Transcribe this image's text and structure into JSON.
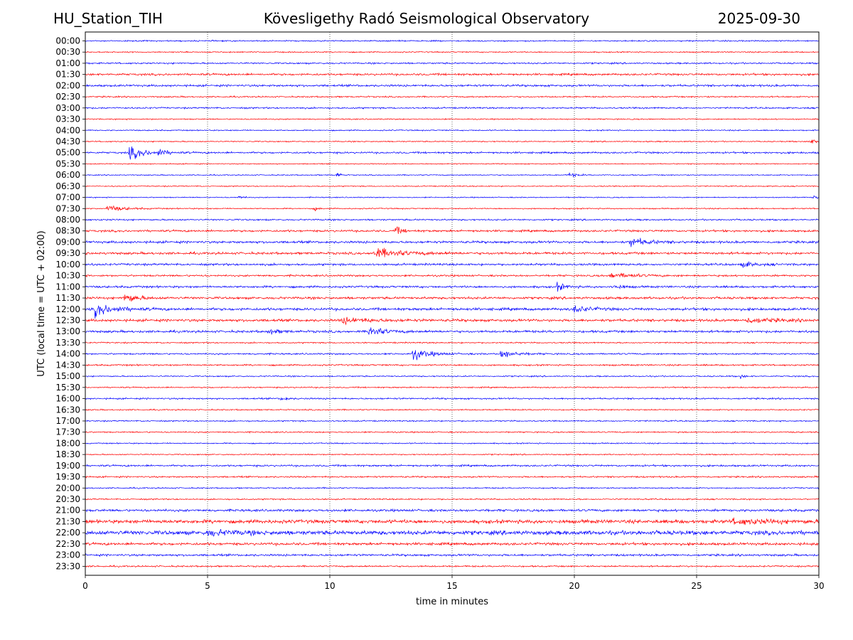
{
  "header": {
    "station": "HU_Station_TIH",
    "title": "Kövesligethy Radó Seismological Observatory",
    "date": "2025-09-30"
  },
  "chart_data": {
    "type": "line",
    "title": "Kövesligethy Radó Seismological Observatory",
    "xlabel": "time in minutes",
    "ylabel": "UTC (local time = UTC + 02:00)",
    "xlim": [
      0,
      30
    ],
    "xticks": [
      0,
      5,
      10,
      15,
      20,
      25,
      30
    ],
    "grid": "vertical dotted at x ticks",
    "colors": {
      "even": "#0000ff",
      "odd": "#ff0000",
      "frame": "#000000",
      "grid": "#000000"
    },
    "traces": [
      {
        "label": "00:00",
        "base": 0.5,
        "events": []
      },
      {
        "label": "00:30",
        "base": 0.45,
        "events": []
      },
      {
        "label": "01:00",
        "base": 0.6,
        "events": []
      },
      {
        "label": "01:30",
        "base": 0.8,
        "events": []
      },
      {
        "label": "02:00",
        "base": 0.8,
        "events": []
      },
      {
        "label": "02:30",
        "base": 0.55,
        "events": []
      },
      {
        "label": "03:00",
        "base": 0.6,
        "events": []
      },
      {
        "label": "03:30",
        "base": 0.45,
        "events": []
      },
      {
        "label": "04:00",
        "base": 0.45,
        "events": []
      },
      {
        "label": "04:30",
        "base": 0.45,
        "events": [
          {
            "t": 29.6,
            "amp": 2.5,
            "dur": 0.5
          }
        ]
      },
      {
        "label": "05:00",
        "base": 0.7,
        "events": [
          {
            "t": 1.8,
            "amp": 5,
            "dur": 1.2
          },
          {
            "t": 3.0,
            "amp": 2.5,
            "dur": 0.5
          }
        ]
      },
      {
        "label": "05:30",
        "base": 0.4,
        "events": []
      },
      {
        "label": "06:00",
        "base": 0.4,
        "events": [
          {
            "t": 10.3,
            "amp": 3,
            "dur": 0.2
          },
          {
            "t": 19.8,
            "amp": 1.8,
            "dur": 0.6
          }
        ]
      },
      {
        "label": "06:30",
        "base": 0.4,
        "events": []
      },
      {
        "label": "07:00",
        "base": 0.4,
        "events": [
          {
            "t": 6.3,
            "amp": 1.5,
            "dur": 0.3
          },
          {
            "t": 29.8,
            "amp": 2.5,
            "dur": 0.3
          }
        ]
      },
      {
        "label": "07:30",
        "base": 0.45,
        "events": [
          {
            "t": 0.9,
            "amp": 2.5,
            "dur": 1.2
          },
          {
            "t": 9.4,
            "amp": 2,
            "dur": 0.2
          }
        ]
      },
      {
        "label": "08:00",
        "base": 0.6,
        "events": []
      },
      {
        "label": "08:30",
        "base": 0.8,
        "events": [
          {
            "t": 12.7,
            "amp": 3,
            "dur": 0.5
          }
        ]
      },
      {
        "label": "09:00",
        "base": 0.9,
        "events": [
          {
            "t": 22.3,
            "amp": 3.5,
            "dur": 1.2
          }
        ]
      },
      {
        "label": "09:30",
        "base": 0.9,
        "events": [
          {
            "t": 11.8,
            "amp": 4,
            "dur": 2
          }
        ]
      },
      {
        "label": "10:00",
        "base": 0.8,
        "events": [
          {
            "t": 26.8,
            "amp": 2,
            "dur": 1
          }
        ]
      },
      {
        "label": "10:30",
        "base": 0.7,
        "events": [
          {
            "t": 21.5,
            "amp": 2.5,
            "dur": 1.5
          }
        ]
      },
      {
        "label": "11:00",
        "base": 0.8,
        "events": [
          {
            "t": 19.3,
            "amp": 3,
            "dur": 0.6
          },
          {
            "t": 21.6,
            "amp": 2,
            "dur": 0.6
          }
        ]
      },
      {
        "label": "11:30",
        "base": 0.9,
        "events": [
          {
            "t": 1.6,
            "amp": 4,
            "dur": 0.9
          }
        ]
      },
      {
        "label": "12:00",
        "base": 1.0,
        "events": [
          {
            "t": 0.4,
            "amp": 5,
            "dur": 1.4
          },
          {
            "t": 20.0,
            "amp": 3,
            "dur": 1
          }
        ]
      },
      {
        "label": "12:30",
        "base": 1.0,
        "events": [
          {
            "t": 10.5,
            "amp": 2.2,
            "dur": 2
          },
          {
            "t": 27.0,
            "amp": 2,
            "dur": 2
          }
        ]
      },
      {
        "label": "13:00",
        "base": 0.9,
        "events": [
          {
            "t": 7.5,
            "amp": 2,
            "dur": 0.8
          },
          {
            "t": 11.6,
            "amp": 4.5,
            "dur": 1
          }
        ]
      },
      {
        "label": "13:30",
        "base": 0.5,
        "events": []
      },
      {
        "label": "14:00",
        "base": 0.6,
        "events": [
          {
            "t": 13.4,
            "amp": 4.5,
            "dur": 1.2
          },
          {
            "t": 17.0,
            "amp": 3.5,
            "dur": 1
          }
        ]
      },
      {
        "label": "14:30",
        "base": 0.6,
        "events": []
      },
      {
        "label": "15:00",
        "base": 0.5,
        "events": [
          {
            "t": 26.8,
            "amp": 2,
            "dur": 0.2
          }
        ]
      },
      {
        "label": "15:30",
        "base": 0.5,
        "events": []
      },
      {
        "label": "16:00",
        "base": 0.6,
        "events": [
          {
            "t": 8.0,
            "amp": 1.5,
            "dur": 0.5
          }
        ]
      },
      {
        "label": "16:30",
        "base": 0.5,
        "events": []
      },
      {
        "label": "17:00",
        "base": 0.5,
        "events": []
      },
      {
        "label": "17:30",
        "base": 0.5,
        "events": []
      },
      {
        "label": "18:00",
        "base": 0.45,
        "events": []
      },
      {
        "label": "18:30",
        "base": 0.45,
        "events": []
      },
      {
        "label": "19:00",
        "base": 0.7,
        "events": []
      },
      {
        "label": "19:30",
        "base": 0.6,
        "events": []
      },
      {
        "label": "20:00",
        "base": 0.5,
        "events": []
      },
      {
        "label": "20:30",
        "base": 0.5,
        "events": []
      },
      {
        "label": "21:00",
        "base": 0.9,
        "events": []
      },
      {
        "label": "21:30",
        "base": 1.4,
        "events": [
          {
            "t": 26.5,
            "amp": 1.8,
            "dur": 3
          }
        ]
      },
      {
        "label": "22:00",
        "base": 1.6,
        "events": [
          {
            "t": 5.0,
            "amp": 1.8,
            "dur": 2
          }
        ]
      },
      {
        "label": "22:30",
        "base": 1.0,
        "events": []
      },
      {
        "label": "23:00",
        "base": 0.8,
        "events": []
      },
      {
        "label": "23:30",
        "base": 0.6,
        "events": []
      }
    ]
  }
}
